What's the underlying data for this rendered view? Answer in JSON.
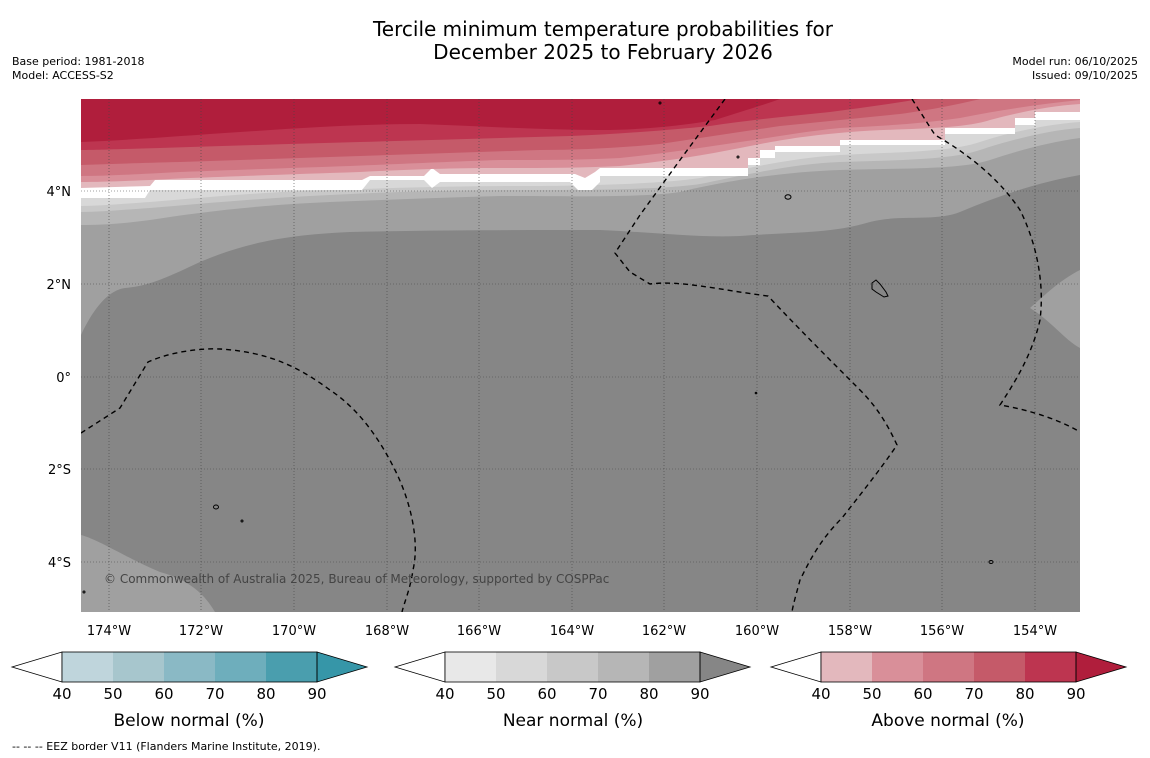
{
  "title": {
    "line1": "Tercile minimum temperature probabilities for",
    "line2": "December 2025 to February 2026"
  },
  "meta": {
    "base_period": "Base period: 1981-2018",
    "model": "Model: ACCESS-S2",
    "model_run": "Model run: 06/10/2025",
    "issued": "Issued: 09/10/2025"
  },
  "map": {
    "lat_labels": [
      "4°N",
      "2°N",
      "0°",
      "2°S",
      "4°S"
    ],
    "lon_labels": [
      "174°W",
      "172°W",
      "170°W",
      "168°W",
      "166°W",
      "164°W",
      "162°W",
      "160°W",
      "158°W",
      "156°W",
      "154°W"
    ],
    "copyright": "© Commonwealth of Australia 2025, Bureau of Meteorology, supported by COSPPac"
  },
  "legend": {
    "below": {
      "title": "Below normal (%)",
      "ticks": [
        "40",
        "50",
        "60",
        "70",
        "80",
        "90"
      ],
      "colors": [
        "#bfd5dc",
        "#a7c6cd",
        "#8ab9c5",
        "#6eaebc",
        "#4a9eae",
        "#3696a8"
      ]
    },
    "near": {
      "title": "Near normal (%)",
      "ticks": [
        "40",
        "50",
        "60",
        "70",
        "80",
        "90"
      ],
      "colors": [
        "#e8e8e8",
        "#d8d8d8",
        "#c8c8c8",
        "#b6b6b6",
        "#a0a0a0",
        "#868686"
      ]
    },
    "above": {
      "title": "Above normal (%)",
      "ticks": [
        "40",
        "50",
        "60",
        "70",
        "80",
        "90"
      ],
      "colors": [
        "#e3b8bd",
        "#d98f99",
        "#cf7682",
        "#c55a69",
        "#bd3550",
        "#b01e3c"
      ]
    }
  },
  "footer": {
    "eez_note": "--  --  -- EEZ border V11 (Flanders Marine Institute, 2019)."
  }
}
